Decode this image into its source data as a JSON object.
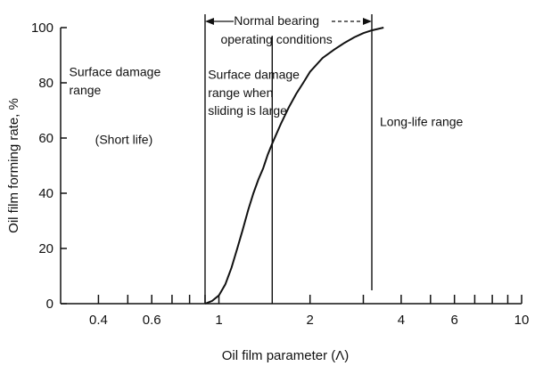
{
  "chart_data": {
    "type": "line",
    "xscale": "log",
    "xlabel": "Oil film parameter (Λ)",
    "ylabel": "Oil film forming rate, %",
    "xlim": [
      0.3,
      10
    ],
    "ylim": [
      0,
      100
    ],
    "x_major_ticks": [
      0.4,
      0.6,
      1,
      2,
      4,
      6,
      10
    ],
    "x_minor_ticks": [
      0.3,
      0.5,
      0.7,
      0.8,
      0.9,
      3,
      5,
      7,
      8,
      9
    ],
    "x_tick_labels": [
      "0.4",
      "0.6",
      "1",
      "2",
      "4",
      "6",
      "10"
    ],
    "y_ticks": [
      0,
      20,
      40,
      60,
      80,
      100
    ],
    "y_tick_labels": [
      "0",
      "20",
      "40",
      "60",
      "80",
      "100"
    ],
    "grid": false,
    "series": [
      {
        "x": [
          0.9,
          0.95,
          1.0,
          1.05,
          1.1,
          1.15,
          1.2,
          1.25,
          1.3,
          1.35,
          1.4,
          1.45,
          1.5,
          1.6,
          1.7,
          1.8,
          1.9,
          2.0,
          2.2,
          2.4,
          2.6,
          2.8,
          3.0,
          3.2,
          3.5
        ],
        "y": [
          0,
          1,
          3,
          7,
          13,
          20,
          27,
          34,
          40,
          45,
          49,
          54,
          58,
          65,
          71,
          76,
          80,
          84,
          89,
          92,
          94.5,
          96.5,
          98,
          99,
          100
        ]
      }
    ],
    "vertical_lines": [
      0.9,
      1.5,
      3.2
    ],
    "annotations": [
      {
        "text": "Surface damage",
        "x": 0.32,
        "y": 84
      },
      {
        "text": "range",
        "x": 0.32,
        "y": 77.5
      },
      {
        "text": "(Short life)",
        "x": 0.39,
        "y": 59.5
      },
      {
        "text": "Surface damage",
        "x": 0.92,
        "y": 83
      },
      {
        "text": "range when",
        "x": 0.92,
        "y": 76.5
      },
      {
        "text": "sliding is large",
        "x": 0.92,
        "y": 70
      },
      {
        "text": "Long-life range",
        "x": 3.4,
        "y": 66
      },
      {
        "text": "Normal bearing",
        "x": 1.55,
        "y": 103.5,
        "anchor": "middle"
      },
      {
        "text": "operating conditions",
        "x": 1.55,
        "y": 97.5,
        "anchor": "middle"
      }
    ],
    "range_arrow": {
      "from": 0.9,
      "to": 3.2,
      "y": 101
    }
  }
}
